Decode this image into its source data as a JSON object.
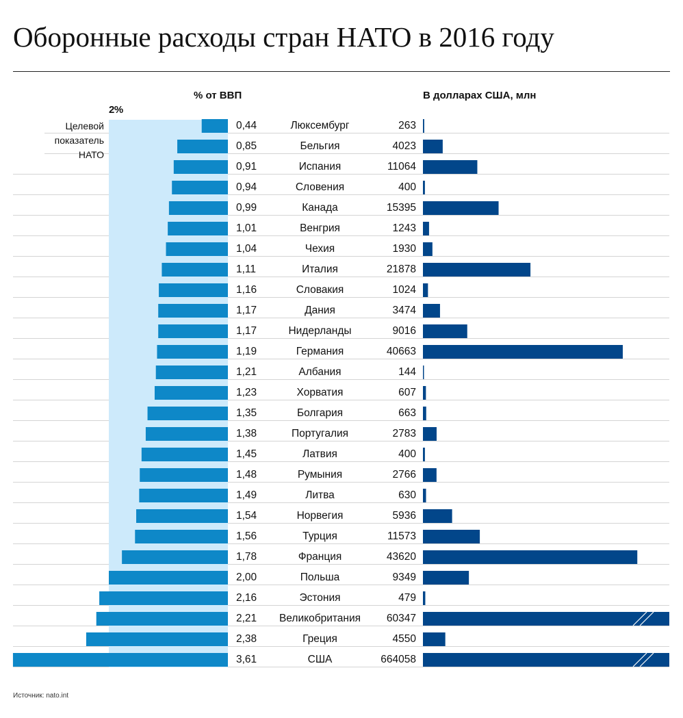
{
  "title": "Оборонные расходы стран НАТО в 2016 году",
  "source": "Источник: nato.int",
  "target_note": "Целевой показатель НАТО",
  "colors": {
    "pct_bar": "#0e88c8",
    "target_band": "#cdeafb",
    "usd_bar": "#02468a",
    "grid": "#d4d4d4"
  },
  "chart_data": [
    {
      "type": "bar",
      "orientation": "horizontal",
      "direction": "right-to-left",
      "xlabel": "% от ВВП",
      "reference_line": {
        "value": 2,
        "label": "2%"
      },
      "categories": [
        "Люксембург",
        "Бельгия",
        "Испания",
        "Словения",
        "Канада",
        "Венгрия",
        "Чехия",
        "Италия",
        "Словакия",
        "Дания",
        "Нидерланды",
        "Германия",
        "Албания",
        "Хорватия",
        "Болгария",
        "Португалия",
        "Латвия",
        "Румыния",
        "Литва",
        "Норвегия",
        "Турция",
        "Франция",
        "Польша",
        "Эстония",
        "Великобритания",
        "Греция",
        "США"
      ],
      "values": [
        0.44,
        0.85,
        0.91,
        0.94,
        0.99,
        1.01,
        1.04,
        1.11,
        1.16,
        1.17,
        1.17,
        1.19,
        1.21,
        1.23,
        1.35,
        1.38,
        1.45,
        1.48,
        1.49,
        1.54,
        1.56,
        1.78,
        2.0,
        2.16,
        2.21,
        2.38,
        3.61
      ],
      "labels": [
        "0,44",
        "0,85",
        "0,91",
        "0,94",
        "0,99",
        "1,01",
        "1,04",
        "1,11",
        "1,16",
        "1,17",
        "1,17",
        "1,19",
        "1,21",
        "1,23",
        "1,35",
        "1,38",
        "1,45",
        "1,48",
        "1,49",
        "1,54",
        "1,56",
        "1,78",
        "2,00",
        "2,16",
        "2,21",
        "2,38",
        "3,61"
      ]
    },
    {
      "type": "bar",
      "orientation": "horizontal",
      "xlabel": "В долларах США, млн",
      "axis_break": [
        "Великобритания",
        "США"
      ],
      "values": [
        263,
        4023,
        11064,
        400,
        15395,
        1243,
        1930,
        21878,
        1024,
        3474,
        9016,
        40663,
        144,
        607,
        663,
        2783,
        400,
        2766,
        630,
        5936,
        11573,
        43620,
        9349,
        479,
        60347,
        4550,
        664058
      ]
    }
  ]
}
